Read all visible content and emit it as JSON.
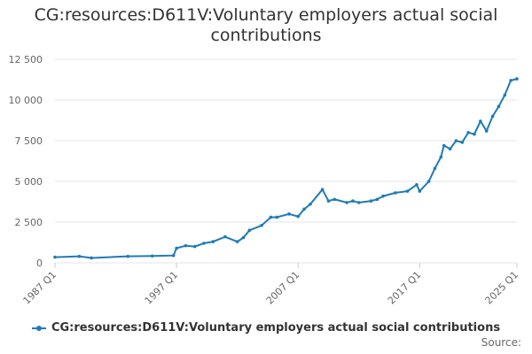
{
  "chart_data": {
    "type": "line",
    "title": "CG:resources:D611V:Voluntary employers actual social contributions",
    "xlabel": "",
    "ylabel": "",
    "x_tick_labels": [
      "1987 Q1",
      "1997 Q1",
      "2007 Q1",
      "2017 Q1",
      "2025 Q1"
    ],
    "y_tick_labels": [
      "0",
      "2 500",
      "5 000",
      "7 500",
      "10 000",
      "12 500"
    ],
    "y_ticks": [
      0,
      2500,
      5000,
      7500,
      10000,
      12500
    ],
    "ylim": [
      0,
      12500
    ],
    "x_range": [
      "1987 Q1",
      "2025 Q1"
    ],
    "grid": true,
    "legend_position": "bottom",
    "colors": {
      "series": "#1f7bb6"
    },
    "series": [
      {
        "name": "CG:resources:D611V:Voluntary employers actual social contributions",
        "x": [
          "1987 Q1",
          "1989 Q1",
          "1990 Q1",
          "1993 Q1",
          "1995 Q1",
          "1996 Q4",
          "1997 Q1",
          "1997 Q4",
          "1998 Q3",
          "1999 Q2",
          "2000 Q1",
          "2001 Q1",
          "2002 Q1",
          "2002 Q3",
          "2003 Q1",
          "2004 Q1",
          "2004 Q4",
          "2005 Q2",
          "2006 Q2",
          "2007 Q1",
          "2007 Q3",
          "2008 Q1",
          "2009 Q1",
          "2009 Q3",
          "2010 Q1",
          "2011 Q1",
          "2011 Q3",
          "2012 Q1",
          "2013 Q1",
          "2013 Q3",
          "2014 Q1",
          "2015 Q1",
          "2016 Q1",
          "2016 Q4",
          "2017 Q1",
          "2017 Q4",
          "2018 Q2",
          "2018 Q4",
          "2019 Q1",
          "2019 Q3",
          "2020 Q1",
          "2020 Q3",
          "2021 Q1",
          "2021 Q3",
          "2022 Q1",
          "2022 Q3",
          "2023 Q1",
          "2023 Q3",
          "2024 Q1",
          "2024 Q3",
          "2025 Q1"
        ],
        "values": [
          350,
          400,
          300,
          400,
          420,
          450,
          900,
          1050,
          1000,
          1200,
          1300,
          1600,
          1300,
          1550,
          2000,
          2300,
          2800,
          2800,
          3000,
          2850,
          3300,
          3600,
          4500,
          3800,
          3900,
          3700,
          3800,
          3700,
          3800,
          3900,
          4100,
          4300,
          4400,
          4800,
          4400,
          5000,
          5800,
          6500,
          7200,
          7000,
          7500,
          7400,
          8000,
          7900,
          8700,
          8100,
          9000,
          9600,
          10300,
          11200,
          11300
        ]
      }
    ]
  },
  "legend": {
    "label": "CG:resources:D611V:Voluntary employers actual social contributions"
  },
  "source_label": "Source:"
}
